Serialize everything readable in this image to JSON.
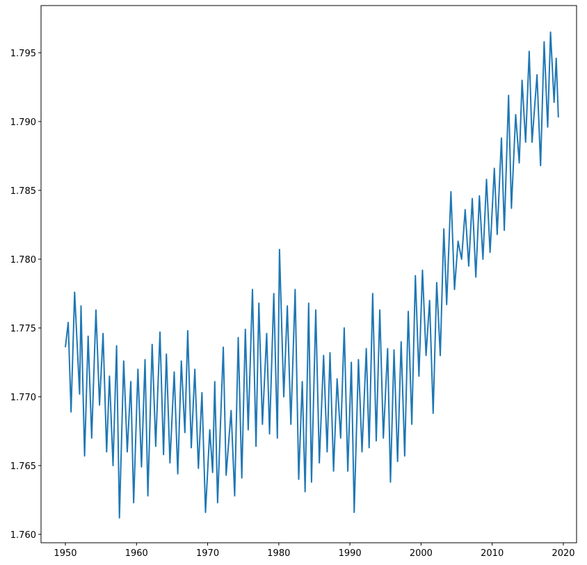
{
  "chart_data": {
    "type": "line",
    "color": "#1f77b4",
    "grid": false,
    "xlim": [
      1946.58,
      2021.86
    ],
    "ylim": [
      1.75939,
      1.79843
    ],
    "xticks": [
      1950,
      1960,
      1970,
      1980,
      1990,
      2000,
      2010,
      2020
    ],
    "yticks": [
      {
        "value": 1.76,
        "label": "1.760"
      },
      1.765,
      {
        "value": 1.77,
        "label": "1.770"
      },
      1.775,
      {
        "value": 1.78,
        "label": "1.780"
      },
      1.785,
      {
        "value": 1.79,
        "label": "1.790"
      },
      1.795
    ],
    "x": [
      1950.0,
      1950.4,
      1950.8,
      1951.3,
      1952.0,
      1952.2,
      1952.7,
      1953.2,
      1953.7,
      1954.3,
      1954.8,
      1955.3,
      1955.8,
      1956.2,
      1956.7,
      1957.2,
      1957.6,
      1958.2,
      1958.7,
      1959.2,
      1959.6,
      1960.2,
      1960.7,
      1961.2,
      1961.6,
      1962.2,
      1962.7,
      1963.3,
      1963.8,
      1964.2,
      1964.7,
      1965.3,
      1965.8,
      1966.3,
      1966.8,
      1967.2,
      1967.7,
      1968.2,
      1968.7,
      1969.2,
      1969.7,
      1970.3,
      1970.7,
      1971.0,
      1971.4,
      1972.2,
      1972.6,
      1973.3,
      1973.8,
      1974.3,
      1974.8,
      1975.3,
      1975.7,
      1976.3,
      1976.8,
      1977.2,
      1977.7,
      1978.3,
      1978.7,
      1979.3,
      1979.8,
      1980.1,
      1980.7,
      1981.2,
      1981.7,
      1982.3,
      1982.8,
      1983.3,
      1983.7,
      1984.2,
      1984.6,
      1985.2,
      1985.7,
      1986.3,
      1986.8,
      1987.2,
      1987.7,
      1988.2,
      1988.7,
      1989.2,
      1989.7,
      1990.2,
      1990.6,
      1991.2,
      1991.7,
      1992.3,
      1992.7,
      1993.2,
      1993.7,
      1994.2,
      1994.7,
      1995.3,
      1995.7,
      1996.2,
      1996.7,
      1997.2,
      1997.7,
      1998.2,
      1998.7,
      1999.2,
      1999.7,
      2000.2,
      2000.7,
      2001.2,
      2001.7,
      2002.2,
      2002.7,
      2003.2,
      2003.6,
      2004.2,
      2004.7,
      2005.2,
      2005.7,
      2006.2,
      2006.7,
      2007.2,
      2007.7,
      2008.2,
      2008.7,
      2009.2,
      2009.7,
      2010.3,
      2010.7,
      2011.3,
      2011.7,
      2012.3,
      2012.7,
      2013.3,
      2013.8,
      2014.2,
      2014.7,
      2015.2,
      2015.6,
      2016.3,
      2016.8,
      2017.3,
      2017.8,
      2018.2,
      2018.7,
      2019.0,
      2019.3
    ],
    "values": [
      1.7736,
      1.7754,
      1.7689,
      1.7776,
      1.7702,
      1.7766,
      1.7657,
      1.7744,
      1.767,
      1.7763,
      1.7694,
      1.7746,
      1.766,
      1.7715,
      1.765,
      1.7737,
      1.7612,
      1.7726,
      1.766,
      1.7711,
      1.7623,
      1.772,
      1.7649,
      1.7727,
      1.7628,
      1.7738,
      1.7664,
      1.7747,
      1.7658,
      1.7731,
      1.7652,
      1.7718,
      1.7644,
      1.7726,
      1.7674,
      1.7748,
      1.7663,
      1.772,
      1.7648,
      1.7703,
      1.7616,
      1.7676,
      1.7645,
      1.7711,
      1.7623,
      1.7736,
      1.7643,
      1.769,
      1.7628,
      1.7743,
      1.7641,
      1.7749,
      1.7676,
      1.7778,
      1.7664,
      1.7768,
      1.768,
      1.7746,
      1.7673,
      1.7775,
      1.767,
      1.7807,
      1.77,
      1.7766,
      1.768,
      1.7778,
      1.764,
      1.7711,
      1.7631,
      1.7768,
      1.7638,
      1.7763,
      1.7652,
      1.773,
      1.766,
      1.7732,
      1.7646,
      1.7713,
      1.767,
      1.775,
      1.7646,
      1.7725,
      1.7616,
      1.7727,
      1.766,
      1.7735,
      1.7663,
      1.7775,
      1.7668,
      1.7763,
      1.767,
      1.7735,
      1.7638,
      1.7734,
      1.7653,
      1.774,
      1.7657,
      1.7762,
      1.768,
      1.7788,
      1.7715,
      1.7792,
      1.773,
      1.777,
      1.7688,
      1.7783,
      1.773,
      1.7822,
      1.7767,
      1.7849,
      1.7778,
      1.7813,
      1.78,
      1.7836,
      1.7795,
      1.7844,
      1.7787,
      1.7846,
      1.78,
      1.7858,
      1.7805,
      1.7866,
      1.7818,
      1.7888,
      1.7821,
      1.7919,
      1.7837,
      1.7905,
      1.787,
      1.793,
      1.7885,
      1.7951,
      1.7885,
      1.7934,
      1.7868,
      1.7958,
      1.7896,
      1.7965,
      1.7914,
      1.7946,
      1.7903
    ]
  }
}
